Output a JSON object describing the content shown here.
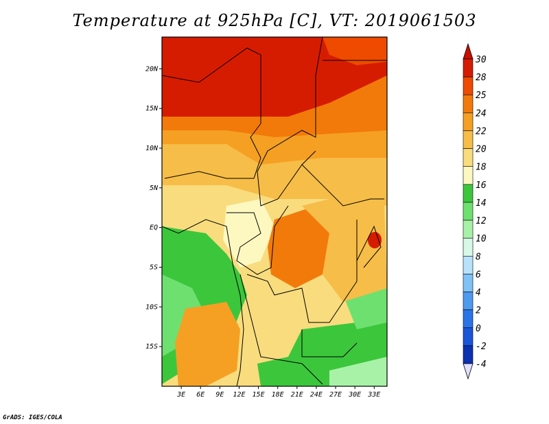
{
  "title": "Temperature at 925hPa [C], VT: 2019061503",
  "credit": "GrADS: IGES/COLA",
  "map": {
    "lon_range": [
      0,
      35
    ],
    "lat_range": [
      -20,
      24
    ],
    "x_ticks": [
      "3E",
      "6E",
      "9E",
      "12E",
      "15E",
      "18E",
      "21E",
      "24E",
      "27E",
      "30E",
      "33E"
    ],
    "x_tick_values": [
      3,
      6,
      9,
      12,
      15,
      18,
      21,
      24,
      27,
      30,
      33
    ],
    "y_ticks": [
      "20N",
      "15N",
      "10N",
      "5N",
      "EQ",
      "5S",
      "10S",
      "15S"
    ],
    "y_tick_values": [
      20,
      15,
      10,
      5,
      0,
      -5,
      -10,
      -15
    ]
  },
  "colorbar": {
    "labels": [
      "30",
      "28",
      "25",
      "24",
      "22",
      "20",
      "18",
      "16",
      "14",
      "12",
      "10",
      "8",
      "6",
      "4",
      "2",
      "0",
      "-2",
      "-4"
    ],
    "colors": [
      "#d61c00",
      "#ee4a00",
      "#f27a0a",
      "#f5a023",
      "#f6bd48",
      "#f8dc7e",
      "#fdf8c0",
      "#3cc63c",
      "#6ee070",
      "#a8f2a8",
      "#d8f8e8",
      "#b8e2fb",
      "#7fc2f5",
      "#4d9aee",
      "#2a74e8",
      "#1a54d8",
      "#0b30b0",
      "#0a0a70"
    ],
    "top_cap_color": "#c80f00",
    "bottom_cap_color": "#e0e0ff"
  }
}
